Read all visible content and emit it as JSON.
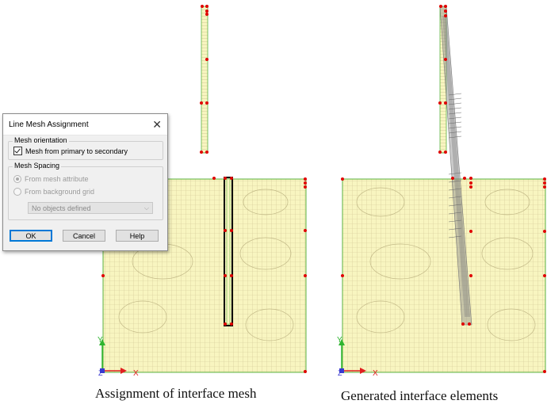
{
  "dialog": {
    "title": "Line Mesh Assignment",
    "close_glyph": "✕",
    "orientation_group": "Mesh orientation",
    "orientation_checkbox": "Mesh from primary to secondary",
    "spacing_group": "Mesh Spacing",
    "radio_from_mesh": "From mesh attribute",
    "radio_from_grid": "From background grid",
    "select_value": "No objects defined",
    "ok_label": "OK",
    "cancel_label": "Cancel",
    "help_label": "Help"
  },
  "left_view": {
    "caption": "Assignment of interface mesh",
    "axis_y": "Y",
    "axis_z": "Z",
    "axis_x": "X"
  },
  "right_view": {
    "caption": "Generated interface elements",
    "axis_y": "Y",
    "axis_z": "Z",
    "axis_x": "X"
  },
  "colors": {
    "mesh_fill": "#f8f5c0",
    "mesh_line": "#c9c08c",
    "boundary": "#59b13f",
    "node": "#e00000",
    "interface": "#888888",
    "highlight": "#000000",
    "axis_y": "#2fb52f",
    "axis_x": "#e02020",
    "axis_z": "#3a3ad0"
  }
}
